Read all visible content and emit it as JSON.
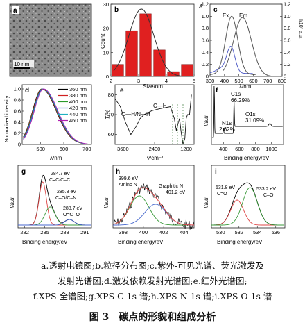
{
  "panels": {
    "a": {
      "label": "a",
      "scalebar": "10 nm"
    },
    "b": {
      "label": "b",
      "xlabel": "Size/nm",
      "ylabel": "Count",
      "xticks": [
        "2",
        "3",
        "4",
        "5"
      ],
      "yticks": [
        "0",
        "10",
        "20",
        "30"
      ]
    },
    "c": {
      "label": "c",
      "xlabel": "λ/nm",
      "ylabel_left": "A",
      "ylabel_right": "I/10⁷ a.u.",
      "xticks": [
        "300",
        "400",
        "500",
        "600",
        "700",
        "800"
      ],
      "yticks_left": [
        "0",
        "0.2",
        "0.4",
        "0.6",
        "0.8",
        "1.0",
        "1.2"
      ],
      "yticks_right": [
        "0",
        "0.2",
        "0.4",
        "0.6",
        "0.8",
        "1.0",
        "1.2"
      ],
      "ex_label": "Ex",
      "em_label": "Em"
    },
    "d": {
      "label": "d",
      "xlabel": "λ/nm",
      "ylabel": "Normalized intensity",
      "xticks": [
        "500",
        "600",
        "700"
      ],
      "yticks": [
        "0",
        "0.2",
        "0.4",
        "0.6",
        "0.8",
        "1.0"
      ],
      "legend": [
        "360 nm",
        "380 nm",
        "400 nm",
        "420 nm",
        "440 nm",
        "460 nm"
      ]
    },
    "e": {
      "label": "e",
      "xlabel": "ν/cm⁻¹",
      "ylabel": "T/%",
      "xticks": [
        "3600",
        "2400",
        "1200"
      ],
      "yticks": [
        "60",
        "70",
        "80"
      ],
      "ann_ch": "C—H",
      "ann_oh": "O—H/N—H"
    },
    "f": {
      "label": "f",
      "xlabel": "Binding energy/eV",
      "ylabel": "I/a.u.",
      "xticks": [
        "400",
        "600",
        "800",
        "1000"
      ],
      "ann_c": "C1s",
      "ann_c_pct": "66.29%",
      "ann_n": "N1s",
      "ann_n_pct": "2.62%",
      "ann_o": "O1s",
      "ann_o_pct": "31.09%"
    },
    "g": {
      "label": "g",
      "xlabel": "Binding energy/eV",
      "ylabel": "I/a.u.",
      "xticks": [
        "282",
        "285",
        "288",
        "291"
      ],
      "ann1_e": "284.7 eV",
      "ann1_s": "C=C/C–C",
      "ann2_e": "285.8 eV",
      "ann2_s": "C–O/C–N",
      "ann3_e": "288.7 eV",
      "ann3_s": "O=C–O"
    },
    "h": {
      "label": "h",
      "xlabel": "Binding energy/eV",
      "ylabel": "I/a.u.",
      "xticks": [
        "398",
        "400",
        "402",
        "404"
      ],
      "ann1_e": "399.6 eV",
      "ann1_s": "Amino N",
      "ann2_s": "Graphitic N",
      "ann2_e": "401.2 eV"
    },
    "i": {
      "label": "i",
      "xlabel": "Binding energy/eV",
      "ylabel": "I/a.u.",
      "xticks": [
        "530",
        "532",
        "534",
        "536"
      ],
      "ann1_e": "531.8 eV",
      "ann1_s": "C=O",
      "ann2_e": "533.2 eV",
      "ann2_s": "C–O"
    }
  },
  "chart_data": [
    {
      "panel": "b",
      "type": "bar",
      "categories": [
        "2.25",
        "2.75",
        "3.25",
        "3.75",
        "4.25",
        "4.75"
      ],
      "values": [
        5,
        19,
        26,
        11,
        2,
        5
      ],
      "fit": "gaussian",
      "xlim": [
        2,
        5
      ],
      "ylim": [
        0,
        30
      ]
    },
    {
      "panel": "c",
      "type": "line",
      "xlim": [
        300,
        800
      ],
      "ylim": [
        0,
        1.2
      ],
      "series": [
        {
          "name": "Ex",
          "x": [
            300,
            350,
            400,
            430,
            450,
            470,
            500,
            550,
            600
          ],
          "y": [
            0.05,
            0.1,
            0.4,
            0.85,
            1.0,
            0.85,
            0.3,
            0.05,
            0.0
          ]
        },
        {
          "name": "Em",
          "x": [
            400,
            450,
            480,
            510,
            530,
            560,
            600,
            650,
            700,
            750
          ],
          "y": [
            0.05,
            0.25,
            0.7,
            1.0,
            0.98,
            0.8,
            0.5,
            0.2,
            0.07,
            0.02
          ]
        },
        {
          "name": "",
          "x": [
            300,
            350,
            400,
            430,
            450,
            480,
            520,
            600
          ],
          "y": [
            0.08,
            0.12,
            0.25,
            0.4,
            0.48,
            0.32,
            0.1,
            0.02
          ]
        }
      ]
    },
    {
      "panel": "d",
      "type": "line",
      "xlim": [
        420,
        720
      ],
      "ylim": [
        0,
        1.0
      ],
      "series": [
        {
          "name": "360 nm",
          "x": [
            430,
            460,
            480,
            500,
            520,
            560,
            600,
            650,
            700
          ],
          "y": [
            0.2,
            0.55,
            0.85,
            1.0,
            0.95,
            0.6,
            0.3,
            0.1,
            0.03
          ]
        }
      ]
    },
    {
      "panel": "e",
      "type": "line",
      "xlim": [
        3900,
        900
      ],
      "ylim": [
        55,
        85
      ],
      "series": [
        {
          "name": "",
          "x": [
            3900,
            3700,
            3500,
            3300,
            3100,
            2950,
            2800,
            2500,
            2200,
            1800,
            1650,
            1500,
            1400,
            1250,
            1150,
            1000
          ],
          "y": [
            78,
            74,
            66,
            60,
            64,
            68,
            70,
            72,
            73,
            74,
            68,
            66,
            62,
            58,
            70,
            80
          ]
        }
      ]
    },
    {
      "panel": "f",
      "type": "line",
      "xlim": [
        250,
        1150
      ],
      "peaks": [
        {
          "name": "C1s",
          "x": 285
        },
        {
          "name": "N1s",
          "x": 400
        },
        {
          "name": "O1s",
          "x": 532
        }
      ]
    },
    {
      "panel": "g",
      "type": "line",
      "xlim": [
        281,
        292
      ],
      "peaks": [
        {
          "x": 284.7
        },
        {
          "x": 285.8
        },
        {
          "x": 288.7
        }
      ]
    },
    {
      "panel": "h",
      "type": "line",
      "xlim": [
        397,
        405
      ],
      "peaks": [
        {
          "x": 399.6
        },
        {
          "x": 401.2
        }
      ]
    },
    {
      "panel": "i",
      "type": "line",
      "xlim": [
        529,
        537
      ],
      "peaks": [
        {
          "x": 531.8
        },
        {
          "x": 533.2
        }
      ]
    }
  ],
  "caption": {
    "line1": "a.透射电镜图;b.粒径分布图;c.紫外-可见光谱、荧光激发及",
    "line2": "发射光谱图;d.激发依赖发射光谱图;e.红外光谱图;",
    "line3": "f.XPS 全谱图;g.XPS C 1s 谱;h.XPS N 1s 谱;i.XPS O 1s 谱",
    "fig_num": "图 3",
    "title": "碳点的形貌和组成分析"
  }
}
